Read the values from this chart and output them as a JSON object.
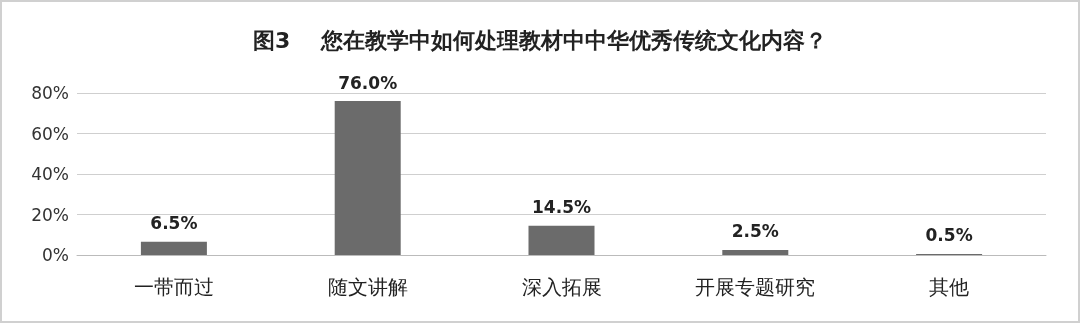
{
  "chart_data": {
    "type": "bar",
    "title": "图3    您在教学中如何处理教材中中华优秀传统文化内容？",
    "categories": [
      "一带而过",
      "随文讲解",
      "深入拓展",
      "开展专题研究",
      "其他"
    ],
    "values": [
      6.5,
      76.0,
      14.5,
      2.5,
      0.5
    ],
    "value_labels": [
      "6.5%",
      "76.0%",
      "14.5%",
      "2.5%",
      "0.5%"
    ],
    "color": "#6b6b6b",
    "ylim": [
      0,
      80
    ],
    "yticks": [
      {
        "value": 0,
        "label": "0%"
      },
      {
        "value": 20,
        "label": "20%"
      },
      {
        "value": 40,
        "label": "40%"
      },
      {
        "value": 60,
        "label": "60%"
      },
      {
        "value": 80,
        "label": "80%"
      }
    ],
    "grid": true
  }
}
